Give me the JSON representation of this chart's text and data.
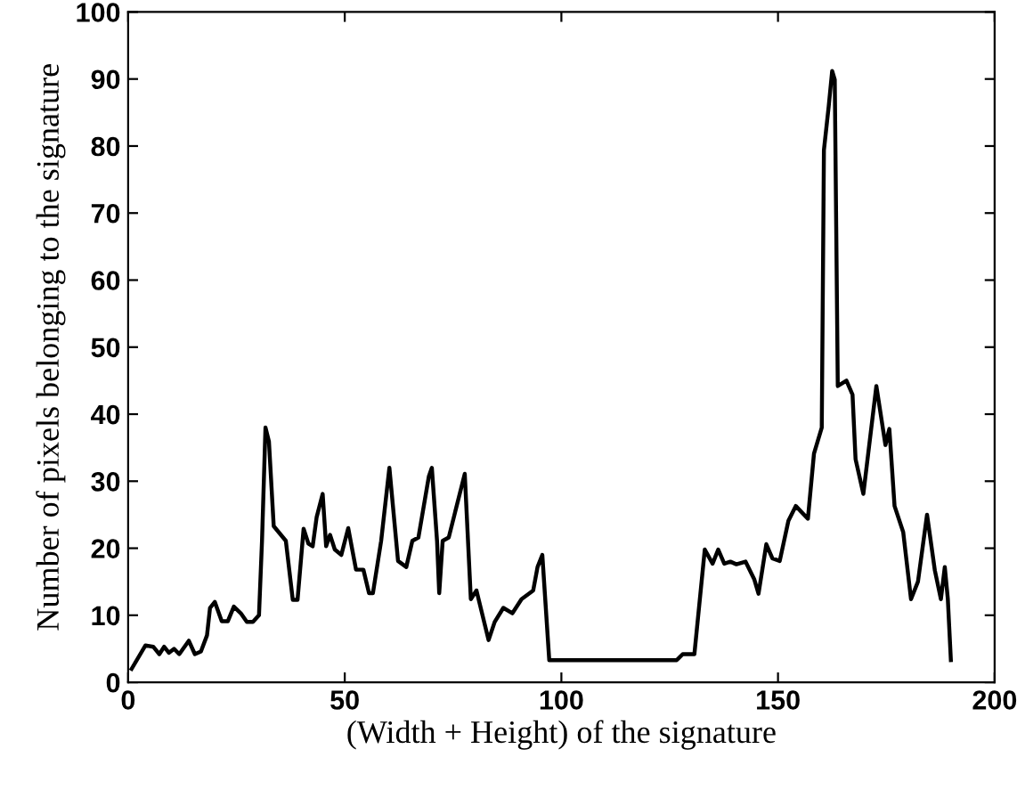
{
  "chart_data": {
    "type": "line",
    "xlabel": "(Width + Height) of the signature",
    "ylabel": "Number of pixels belonging to the signature",
    "xlim": [
      0,
      200
    ],
    "ylim": [
      0,
      100
    ],
    "xticks": [
      0,
      50,
      100,
      150,
      200
    ],
    "yticks": [
      0,
      10,
      20,
      30,
      40,
      50,
      60,
      70,
      80,
      90,
      100
    ],
    "grid": false,
    "marker": "none",
    "line_style": "solid",
    "series": [
      {
        "color": "#000000",
        "x": [
          0.8,
          4.0,
          5.8,
          7.2,
          8.3,
          9.4,
          10.6,
          11.8,
          14.0,
          15.4,
          16.8,
          18.2,
          18.9,
          20.0,
          21.6,
          23.0,
          24.4,
          26.0,
          27.4,
          28.8,
          30.2,
          30.9,
          31.7,
          32.5,
          33.6,
          36.4,
          38.0,
          39.1,
          40.5,
          41.6,
          42.6,
          43.5,
          44.9,
          45.7,
          46.6,
          47.7,
          49.2,
          50.8,
          52.6,
          54.3,
          55.6,
          56.5,
          58.4,
          60.3,
          62.3,
          64.2,
          65.6,
          67.0,
          69.4,
          70.1,
          71.3,
          71.8,
          72.6,
          74.0,
          77.7,
          79.1,
          80.4,
          83.2,
          84.6,
          86.6,
          88.7,
          90.8,
          93.5,
          94.5,
          95.6,
          97.2,
          126.6,
          128.0,
          130.7,
          133.1,
          134.9,
          136.2,
          137.6,
          139.0,
          140.4,
          142.5,
          144.5,
          145.5,
          147.3,
          148.7,
          150.4,
          152.4,
          154.1,
          156.9,
          158.3,
          160.1,
          160.6,
          161.7,
          162.5,
          163.1,
          163.8,
          165.8,
          167.2,
          167.9,
          169.7,
          172.7,
          174.8,
          175.7,
          176.9,
          178.9,
          180.7,
          182.3,
          184.4,
          186.2,
          187.6,
          188.5,
          189.2,
          189.9
        ],
        "values": [
          2.0,
          5.5,
          5.3,
          4.2,
          5.3,
          4.4,
          5.0,
          4.2,
          6.2,
          4.2,
          4.6,
          7.0,
          11.1,
          12.0,
          9.1,
          9.1,
          11.3,
          10.3,
          9.0,
          9.0,
          10.0,
          21.1,
          38.0,
          35.9,
          23.3,
          21.1,
          12.3,
          12.3,
          22.9,
          20.7,
          20.3,
          24.6,
          28.1,
          20.3,
          22.0,
          19.8,
          19.0,
          23.0,
          16.8,
          16.8,
          13.3,
          13.3,
          21.1,
          32.0,
          18.1,
          17.2,
          21.1,
          21.6,
          30.7,
          32.0,
          21.1,
          13.3,
          21.1,
          21.6,
          31.1,
          12.4,
          13.7,
          6.3,
          9.0,
          11.1,
          10.3,
          12.4,
          13.7,
          17.2,
          19.0,
          3.3,
          3.3,
          4.2,
          4.2,
          19.8,
          17.7,
          19.8,
          17.7,
          18.0,
          17.6,
          18.0,
          15.4,
          13.2,
          20.6,
          18.5,
          18.1,
          24.1,
          26.3,
          24.4,
          34.1,
          38.0,
          79.4,
          85.9,
          91.2,
          89.9,
          44.2,
          45.0,
          42.9,
          33.3,
          28.1,
          44.2,
          35.4,
          37.8,
          26.3,
          22.4,
          12.4,
          15.0,
          25.0,
          16.7,
          12.4,
          17.2,
          12.4,
          3.3
        ]
      }
    ]
  }
}
